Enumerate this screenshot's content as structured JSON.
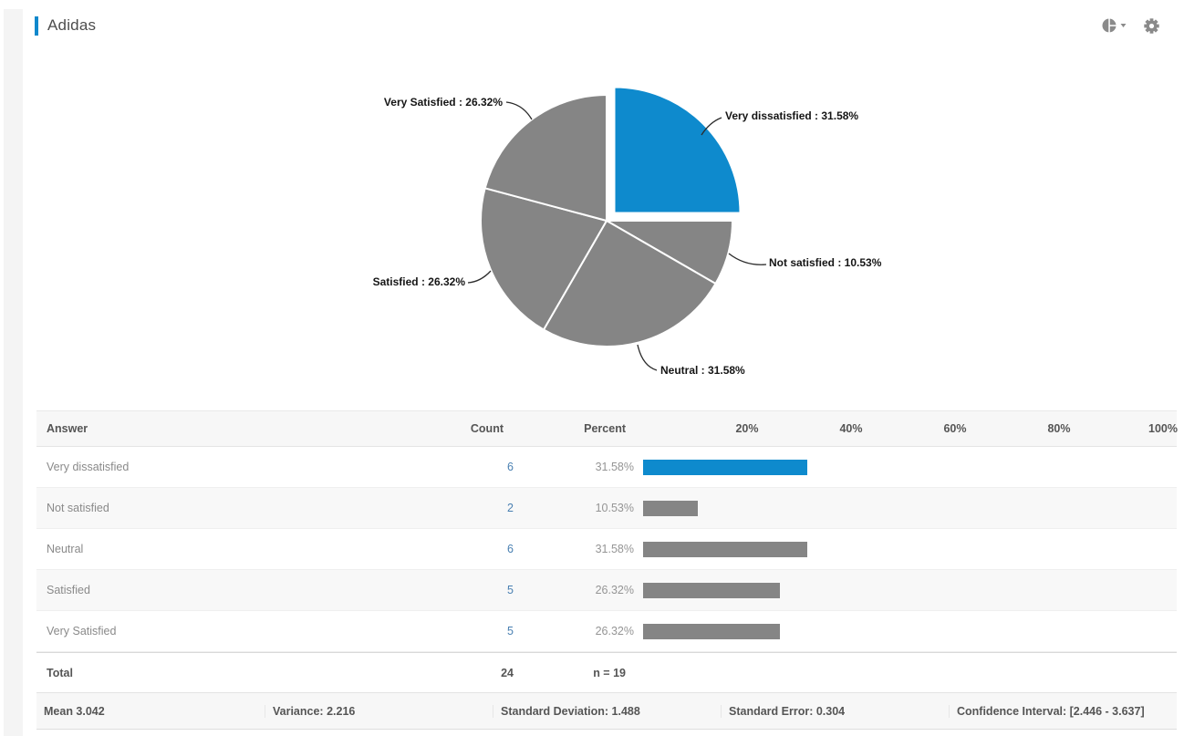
{
  "header": {
    "title": "Adidas"
  },
  "toolbar": {
    "chart_type_icon": "pie-chart-icon",
    "settings_icon": "gear-icon"
  },
  "colors": {
    "accent_blue": "#1088cc",
    "pie_blue": "#0e8acd",
    "pie_gray": "#858585",
    "bar_blue": "#0e8acd",
    "bar_gray": "#858585"
  },
  "chart_data": {
    "type": "pie",
    "start_angle_deg": 0,
    "legend_position": "outside-labels",
    "slices": [
      {
        "label": "Very dissatisfied",
        "percent_label": "Very dissatisfied : 31.58%",
        "value": 31.58,
        "color": "#0e8acd",
        "exploded": true
      },
      {
        "label": "Not satisfied",
        "percent_label": "Not satisfied : 10.53%",
        "value": 10.53,
        "color": "#858585",
        "exploded": false
      },
      {
        "label": "Neutral",
        "percent_label": "Neutral : 31.58%",
        "value": 31.58,
        "color": "#858585",
        "exploded": false
      },
      {
        "label": "Satisfied",
        "percent_label": "Satisfied : 26.32%",
        "value": 26.32,
        "color": "#858585",
        "exploded": false
      },
      {
        "label": "Very Satisfied",
        "percent_label": "Very Satisfied : 26.32%",
        "value": 26.32,
        "color": "#858585",
        "exploded": false
      }
    ]
  },
  "table": {
    "columns": [
      "Answer",
      "Count",
      "Percent",
      "20%",
      "40%",
      "60%",
      "80%",
      "100%"
    ],
    "rows": [
      {
        "answer": "Very dissatisfied",
        "count": "6",
        "percent": "31.58%",
        "bar_pct": 31.58,
        "bar_color": "#0e8acd"
      },
      {
        "answer": "Not satisfied",
        "count": "2",
        "percent": "10.53%",
        "bar_pct": 10.53,
        "bar_color": "#858585"
      },
      {
        "answer": "Neutral",
        "count": "6",
        "percent": "31.58%",
        "bar_pct": 31.58,
        "bar_color": "#858585"
      },
      {
        "answer": "Satisfied",
        "count": "5",
        "percent": "26.32%",
        "bar_pct": 26.32,
        "bar_color": "#858585"
      },
      {
        "answer": "Very Satisfied",
        "count": "5",
        "percent": "26.32%",
        "bar_pct": 26.32,
        "bar_color": "#858585"
      }
    ],
    "total": {
      "label": "Total",
      "count": "24",
      "n": "n = 19"
    },
    "stats": [
      "Mean 3.042",
      "Variance: 2.216",
      "Standard Deviation: 1.488",
      "Standard Error: 0.304",
      "Confidence Interval: [2.446 - 3.637]"
    ]
  }
}
